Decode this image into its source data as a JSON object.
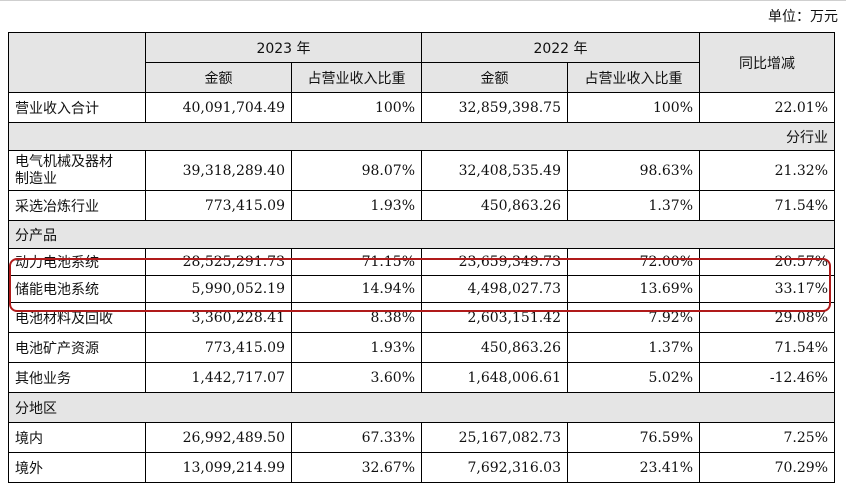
{
  "unit_note": "单位：万元",
  "header": {
    "year_2023": "2023 年",
    "year_2022": "2022 年",
    "amount": "金额",
    "share": "占营业收入比重",
    "yoy": "同比增减"
  },
  "rows": {
    "total": {
      "label": "营业收入合计",
      "a23": "40,091,704.49",
      "s23": "100%",
      "a22": "32,859,398.75",
      "s22": "100%",
      "yoy": "22.01%"
    },
    "sec_industry": "分行业",
    "r_electrical": {
      "label_line1": "电气机械及器材",
      "label_line2": "制造业",
      "a23": "39,318,289.40",
      "s23": "98.07%",
      "a22": "32,408,535.49",
      "s22": "98.63%",
      "yoy": "21.32%"
    },
    "r_mining": {
      "label": "采选冶炼行业",
      "a23": "773,415.09",
      "s23": "1.93%",
      "a22": "450,863.26",
      "s22": "1.37%",
      "yoy": "71.54%"
    },
    "sec_product": "分产品",
    "r_power": {
      "label": "动力电池系统",
      "a23": "28,525,291.73",
      "s23": "71.15%",
      "a22": "23,659,349.73",
      "s22": "72.00%",
      "yoy": "20.57%"
    },
    "r_storage": {
      "label": "储能电池系统",
      "a23": "5,990,052.19",
      "s23": "14.94%",
      "a22": "4,498,027.73",
      "s22": "13.69%",
      "yoy": "33.17%"
    },
    "r_material": {
      "label": "电池材料及回收",
      "a23": "3,360,228.41",
      "s23": "8.38%",
      "a22": "2,603,151.42",
      "s22": "7.92%",
      "yoy": "29.08%"
    },
    "r_mineral": {
      "label": "电池矿产资源",
      "a23": "773,415.09",
      "s23": "1.93%",
      "a22": "450,863.26",
      "s22": "1.37%",
      "yoy": "71.54%"
    },
    "r_other": {
      "label": "其他业务",
      "a23": "1,442,717.07",
      "s23": "3.60%",
      "a22": "1,648,006.61",
      "s22": "5.02%",
      "yoy": "-12.46%"
    },
    "sec_region": "分地区",
    "r_domestic": {
      "label": "境内",
      "a23": "26,992,489.50",
      "s23": "67.33%",
      "a22": "25,167,082.73",
      "s22": "76.59%",
      "yoy": "7.25%"
    },
    "r_overseas": {
      "label": "境外",
      "a23": "13,099,214.99",
      "s23": "32.67%",
      "a22": "7,692,316.03",
      "s22": "23.41%",
      "yoy": "70.29%"
    }
  },
  "highlight_color": "#b01a1a"
}
